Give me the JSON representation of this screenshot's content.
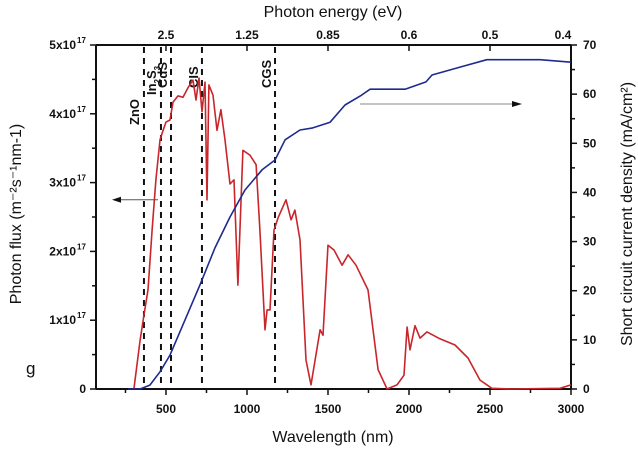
{
  "chart_data": {
    "type": "line",
    "panel_label": "g",
    "title": "",
    "xlabel": "Wavelength (nm)",
    "x_top_label": "Photon energy (eV)",
    "ylabel_left": "Photon flux (m⁻²s⁻¹nm-1)",
    "ylabel_right": "Short circuit current density (mA/cm²)",
    "xlim": [
      68,
      3000
    ],
    "ylim_left": [
      0,
      5e+17
    ],
    "ylim_right": [
      0,
      70
    ],
    "x_ticks": [
      500,
      1000,
      1500,
      2000,
      2500,
      3000
    ],
    "x_tick_labels": [
      "500",
      "1000",
      "1500",
      "2000",
      "2500",
      "3000"
    ],
    "x_minor_ticks": [
      250,
      750,
      1250,
      1750,
      2250,
      2750
    ],
    "top_ticks": [
      {
        "label": "2.5",
        "wavelength": 500
      },
      {
        "label": "1.25",
        "wavelength": 1000
      },
      {
        "label": "0.85",
        "wavelength": 1500
      },
      {
        "label": "0.6",
        "wavelength": 2000
      },
      {
        "label": "0.5",
        "wavelength": 2500
      },
      {
        "label": "0.4",
        "wavelength": 3000
      }
    ],
    "y_left_ticks": [
      0,
      1,
      2,
      3,
      4,
      5
    ],
    "y_left_tick_labels": [
      "0",
      "1x10",
      "2x10",
      "3x10",
      "4x10",
      "5x10"
    ],
    "y_left_tick_exponent": "17",
    "y_right_ticks": [
      0,
      10,
      20,
      30,
      40,
      50,
      60,
      70
    ],
    "y_right_tick_labels": [
      "0",
      "10",
      "20",
      "30",
      "40",
      "50",
      "60",
      "70"
    ],
    "grid": false,
    "legend": "none",
    "band_edges": [
      {
        "label": "ZnO",
        "wavelength": 364
      },
      {
        "label": "In2S3",
        "wavelength": 469
      },
      {
        "label": "CdS",
        "wavelength": 531
      },
      {
        "label": "CIS",
        "wavelength": 722
      },
      {
        "label": "CGS",
        "wavelength": 1173
      }
    ],
    "annotations": [
      {
        "type": "arrow",
        "direction": "left",
        "points_to": "left-axis",
        "y_value_left": 2.75
      },
      {
        "type": "arrow",
        "direction": "right",
        "points_to": "right-axis",
        "y_value_right": 58
      }
    ],
    "series": [
      {
        "name": "Photon flux",
        "axis": "left",
        "unit": "1e17 m^-2 s^-1 nm^-1",
        "color": "#c8262b",
        "x": [
          302,
          340,
          364,
          389,
          414,
          438,
          463,
          482,
          500,
          525,
          543,
          574,
          605,
          636,
          667,
          685,
          704,
          722,
          741,
          753,
          765,
          790,
          815,
          839,
          864,
          895,
          920,
          944,
          975,
          1018,
          1056,
          1080,
          1111,
          1124,
          1142,
          1167,
          1192,
          1241,
          1272,
          1296,
          1327,
          1364,
          1395,
          1451,
          1469,
          1500,
          1537,
          1587,
          1624,
          1673,
          1747,
          1809,
          1865,
          1926,
          1969,
          1988,
          2006,
          2037,
          2068,
          2111,
          2191,
          2284,
          2364,
          2438,
          2512,
          2623,
          2932,
          3000
        ],
        "y": [
          0,
          0.71,
          1.08,
          1.44,
          2.31,
          3.04,
          3.62,
          3.76,
          3.88,
          3.91,
          4.17,
          4.26,
          4.24,
          4.38,
          4.49,
          4.2,
          4.52,
          4.03,
          4.46,
          2.75,
          4.42,
          4.27,
          3.76,
          4.06,
          3.62,
          2.98,
          3.04,
          1.51,
          3.47,
          3.4,
          3.26,
          2.31,
          0.86,
          1.15,
          1.15,
          2.31,
          2.49,
          2.75,
          2.46,
          2.6,
          2.17,
          0.42,
          0.06,
          0.86,
          0.78,
          2.09,
          2.02,
          1.8,
          1.95,
          1.8,
          1.44,
          0.28,
          0,
          0.06,
          0.2,
          0.9,
          0.57,
          0.92,
          0.74,
          0.83,
          0.73,
          0.64,
          0.45,
          0.13,
          0.01,
          0,
          0.01,
          0.06
        ]
      },
      {
        "name": "Short circuit current density",
        "axis": "right",
        "unit": "mA/cm2",
        "color": "#1f2a8f",
        "x": [
          266,
          340,
          401,
          463,
          525,
          617,
          710,
          802,
          895,
          988,
          1093,
          1173,
          1235,
          1327,
          1401,
          1513,
          1605,
          1698,
          1760,
          1860,
          1976,
          2105,
          2142,
          2315,
          2480,
          2809,
          3000
        ],
        "y": [
          0,
          0,
          0.8,
          3.5,
          6.9,
          14.0,
          21.2,
          28.7,
          35.0,
          40.5,
          44.6,
          46.6,
          50.7,
          52.7,
          53.1,
          54.3,
          57.8,
          59.6,
          61.0,
          61.0,
          61.0,
          62.5,
          63.9,
          65.5,
          67.0,
          67.0,
          66.5
        ]
      }
    ]
  }
}
